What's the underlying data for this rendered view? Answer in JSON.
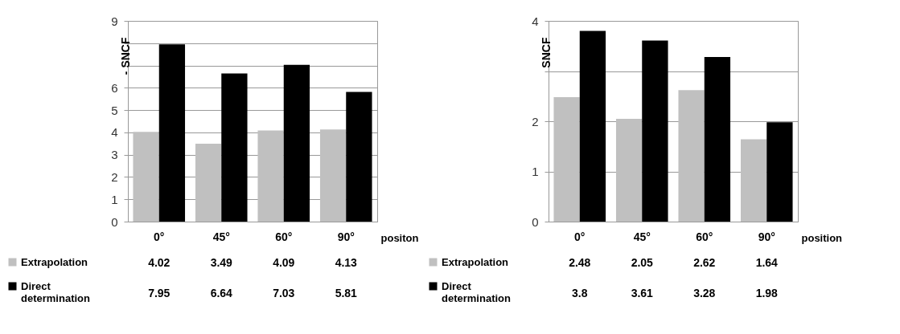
{
  "chart_data": [
    {
      "type": "bar",
      "ylabel": "- SNCF",
      "xlabel": "positon",
      "categories": [
        "0°",
        "45°",
        "60°",
        "90°"
      ],
      "series": [
        {
          "name": "Extrapolation",
          "color": "#c0c0c0",
          "values": [
            4.02,
            3.49,
            4.09,
            4.13
          ]
        },
        {
          "name": "Direct determination",
          "color": "#000000",
          "values": [
            7.95,
            6.64,
            7.03,
            5.81
          ]
        }
      ],
      "ylim": [
        0,
        9
      ],
      "yticks": [
        0,
        1,
        2,
        3,
        4,
        5,
        6,
        {
          "value": 7,
          "label": null
        },
        {
          "value": 8,
          "label": null
        },
        9
      ],
      "grid": "y",
      "legend": "bottom left",
      "data_labels": true
    },
    {
      "type": "bar",
      "ylabel": "SNCF",
      "xlabel": "position",
      "categories": [
        "0°",
        "45°",
        "60°",
        "90°"
      ],
      "series": [
        {
          "name": "Extrapolation",
          "color": "#c0c0c0",
          "values": [
            2.48,
            2.05,
            2.62,
            1.64
          ]
        },
        {
          "name": "Direct determination",
          "color": "#000000",
          "values": [
            3.8,
            3.61,
            3.28,
            1.98
          ]
        }
      ],
      "ylim": [
        0,
        4
      ],
      "yticks": [
        0,
        1,
        2,
        {
          "value": 3,
          "label": null
        },
        4
      ],
      "grid": "y",
      "legend": "bottom left",
      "data_labels": true
    }
  ]
}
